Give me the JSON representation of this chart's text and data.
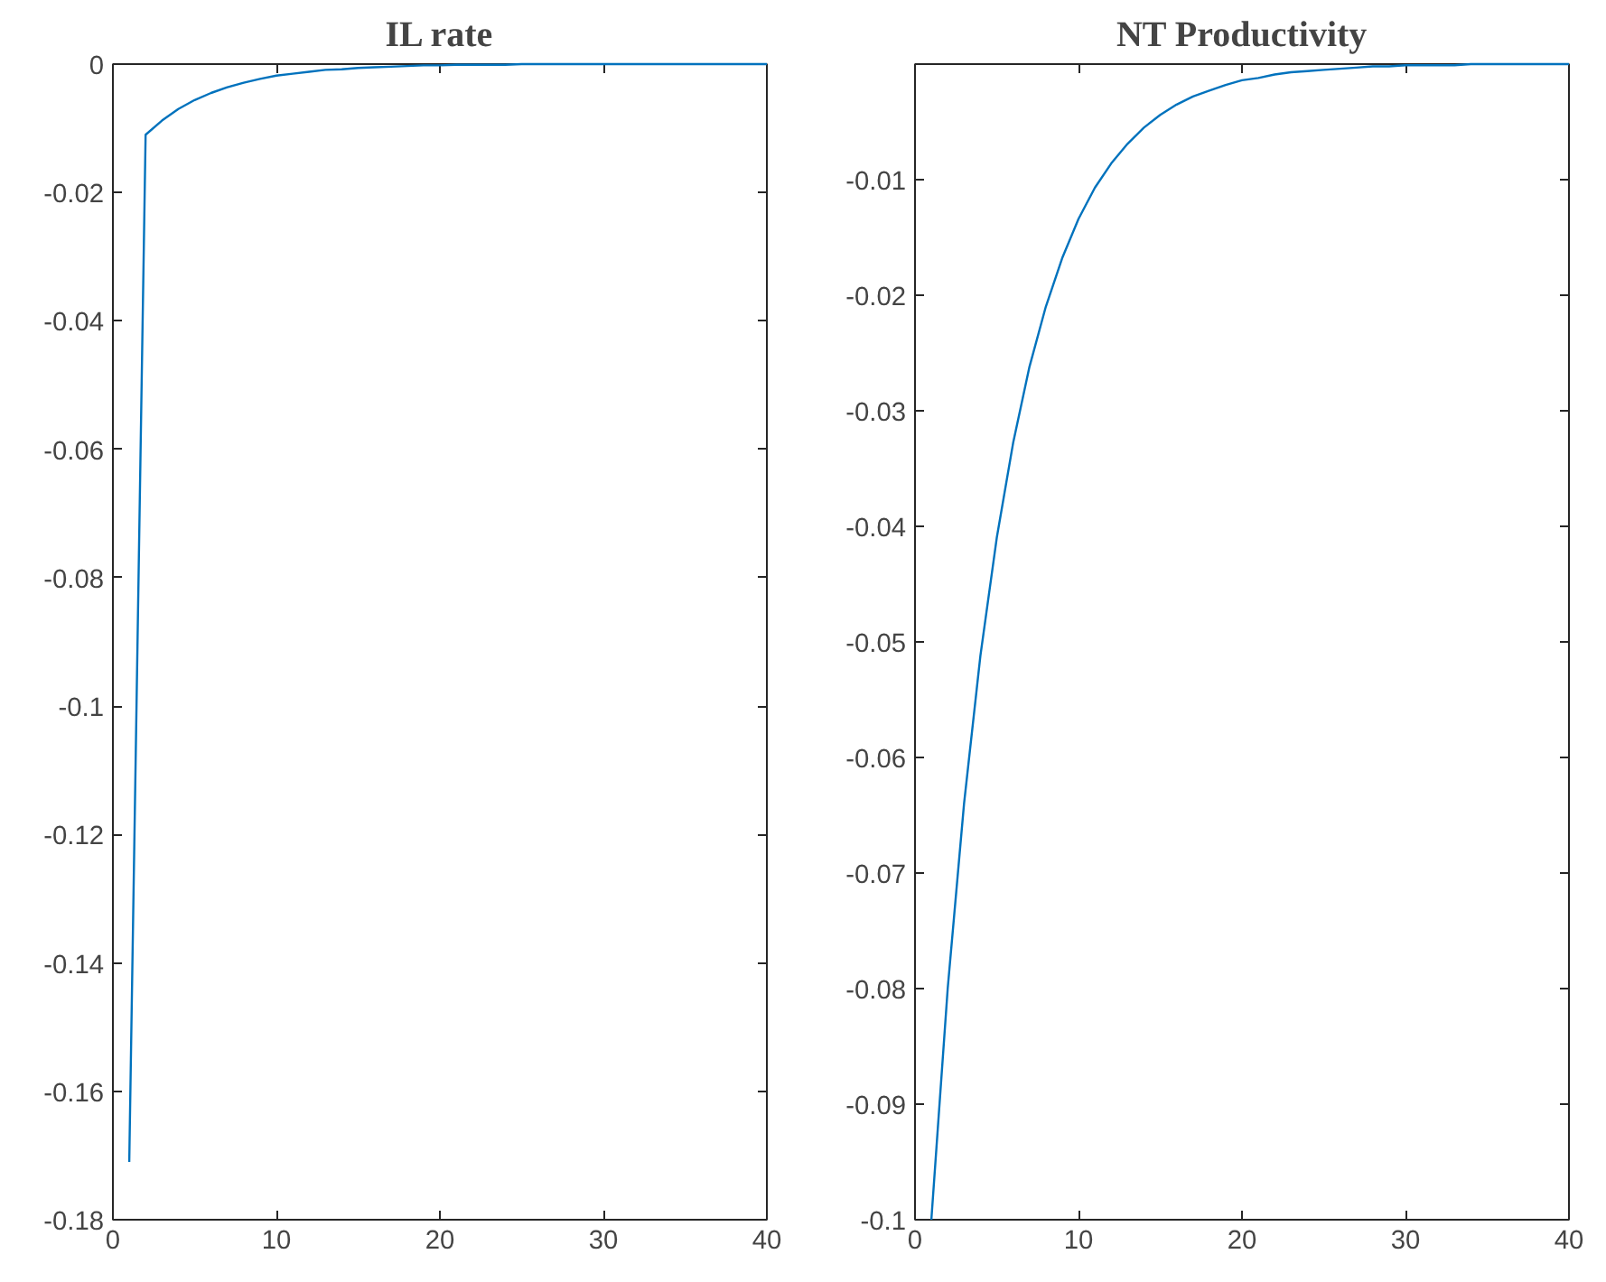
{
  "chart_data": [
    {
      "type": "line",
      "title": "IL rate",
      "x": [
        1,
        2,
        3,
        4,
        5,
        6,
        7,
        8,
        9,
        10,
        11,
        12,
        13,
        14,
        15,
        16,
        17,
        18,
        19,
        20,
        21,
        22,
        23,
        24,
        25,
        26,
        27,
        28,
        29,
        30,
        31,
        32,
        33,
        34,
        35,
        36,
        37,
        38,
        39,
        40
      ],
      "series": [
        {
          "color": "#0072bd",
          "values": [
            -0.171,
            -0.011,
            -0.0088,
            -0.007,
            -0.0056,
            -0.0045,
            -0.0036,
            -0.0029,
            -0.0023,
            -0.0018,
            -0.0015,
            -0.0012,
            -0.0009,
            -0.0008,
            -0.0006,
            -0.0005,
            -0.0004,
            -0.0003,
            -0.0002,
            -0.0002,
            -0.0001,
            -0.0001,
            -0.0001,
            -0.0001,
            0,
            0,
            0,
            0,
            0,
            0,
            0,
            0,
            0,
            0,
            0,
            0,
            0,
            0,
            0,
            0
          ]
        }
      ],
      "xlim": [
        0,
        40
      ],
      "ylim": [
        -0.18,
        0
      ],
      "xticks": [
        0,
        10,
        20,
        30,
        40
      ],
      "yticks": [
        -0.18,
        -0.16,
        -0.14,
        -0.12,
        -0.1,
        -0.08,
        -0.06,
        -0.04,
        -0.02,
        0
      ],
      "grid": false
    },
    {
      "type": "line",
      "title": "NT Productivity",
      "x": [
        1,
        2,
        3,
        4,
        5,
        6,
        7,
        8,
        9,
        10,
        11,
        12,
        13,
        14,
        15,
        16,
        17,
        18,
        19,
        20,
        21,
        22,
        23,
        24,
        25,
        26,
        27,
        28,
        29,
        30,
        31,
        32,
        33,
        34,
        35,
        36,
        37,
        38,
        39,
        40
      ],
      "series": [
        {
          "color": "#0072bd",
          "values": [
            -0.1,
            -0.08,
            -0.064,
            -0.0512,
            -0.041,
            -0.0328,
            -0.0262,
            -0.021,
            -0.0168,
            -0.0134,
            -0.0107,
            -0.0086,
            -0.0069,
            -0.0055,
            -0.0044,
            -0.0035,
            -0.0028,
            -0.0023,
            -0.0018,
            -0.0014,
            -0.0012,
            -0.0009,
            -0.0007,
            -0.0006,
            -0.0005,
            -0.0004,
            -0.0003,
            -0.0002,
            -0.0002,
            -0.0001,
            -0.0001,
            -0.0001,
            -0.0001,
            0,
            0,
            0,
            0,
            0,
            0,
            0
          ]
        }
      ],
      "xlim": [
        0,
        40
      ],
      "ylim": [
        -0.1,
        0
      ],
      "xticks": [
        0,
        10,
        20,
        30,
        40
      ],
      "yticks": [
        -0.1,
        -0.09,
        -0.08,
        -0.07,
        -0.06,
        -0.05,
        -0.04,
        -0.03,
        -0.02,
        -0.01,
        {
          "value": 0,
          "label": null
        }
      ],
      "grid": false
    }
  ]
}
